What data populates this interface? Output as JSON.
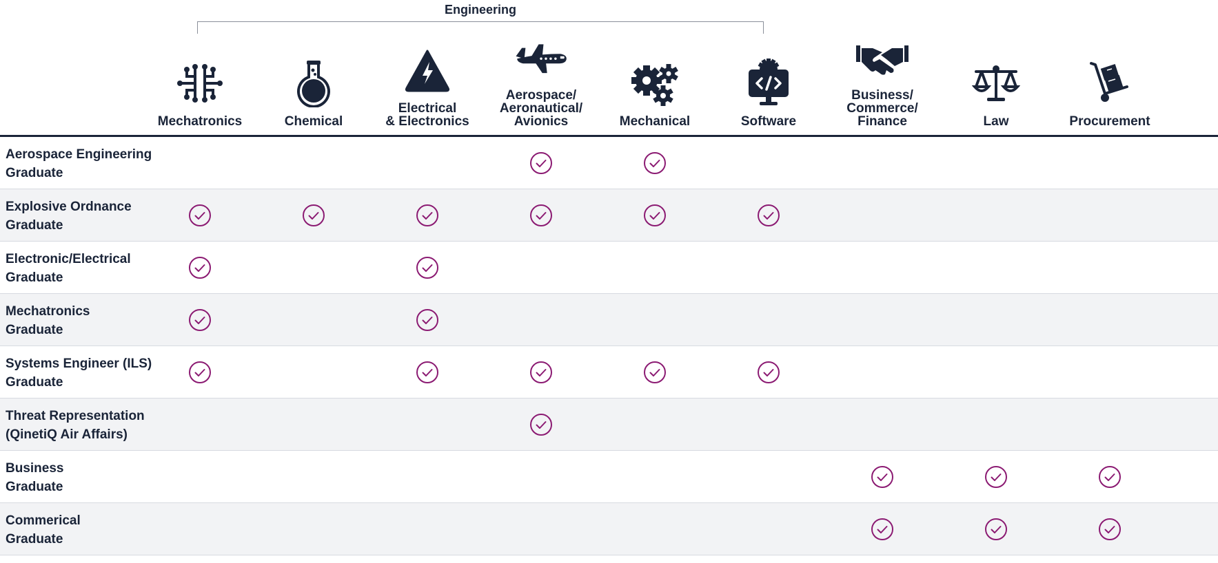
{
  "group": {
    "label": "Engineering"
  },
  "columns": [
    {
      "key": "mechatronics",
      "label": "Mechatronics",
      "icon": "circuit-icon"
    },
    {
      "key": "chemical",
      "label": "Chemical",
      "icon": "flask-icon"
    },
    {
      "key": "electrical",
      "label": "Electrical\n& Electronics",
      "icon": "lightning-triangle-icon"
    },
    {
      "key": "aerospace",
      "label": "Aerospace/\nAeronautical/\nAvionics",
      "icon": "airplane-icon"
    },
    {
      "key": "mechanical",
      "label": "Mechanical",
      "icon": "gears-icon"
    },
    {
      "key": "software",
      "label": "Software",
      "icon": "code-monitor-icon"
    },
    {
      "key": "business",
      "label": "Business/\nCommerce/\nFinance",
      "icon": "handshake-icon"
    },
    {
      "key": "law",
      "label": "Law",
      "icon": "scales-icon"
    },
    {
      "key": "procurement",
      "label": "Procurement",
      "icon": "hand-truck-icon"
    }
  ],
  "rows": [
    {
      "label": "Aerospace Engineering\nGraduate",
      "checks": [
        false,
        false,
        false,
        true,
        true,
        false,
        false,
        false,
        false
      ]
    },
    {
      "label": "Explosive Ordnance\nGraduate",
      "checks": [
        true,
        true,
        true,
        true,
        true,
        true,
        false,
        false,
        false
      ]
    },
    {
      "label": "Electronic/Electrical\nGraduate",
      "checks": [
        true,
        false,
        true,
        false,
        false,
        false,
        false,
        false,
        false
      ]
    },
    {
      "label": "Mechatronics\nGraduate",
      "checks": [
        true,
        false,
        true,
        false,
        false,
        false,
        false,
        false,
        false
      ]
    },
    {
      "label": "Systems Engineer (ILS)\nGraduate",
      "checks": [
        true,
        false,
        true,
        true,
        true,
        true,
        false,
        false,
        false
      ]
    },
    {
      "label": "Threat Representation\n(QinetiQ Air Affairs)",
      "checks": [
        false,
        false,
        false,
        true,
        false,
        false,
        false,
        false,
        false
      ]
    },
    {
      "label": "Business\nGraduate",
      "checks": [
        false,
        false,
        false,
        false,
        false,
        false,
        true,
        true,
        true
      ]
    },
    {
      "label": "Commerical\nGraduate",
      "checks": [
        false,
        false,
        false,
        false,
        false,
        false,
        true,
        true,
        true
      ]
    }
  ],
  "colors": {
    "icon": "#1a2438",
    "check": "#8b1a72",
    "rule": "#1a2438",
    "stripe": "#f2f3f5"
  }
}
